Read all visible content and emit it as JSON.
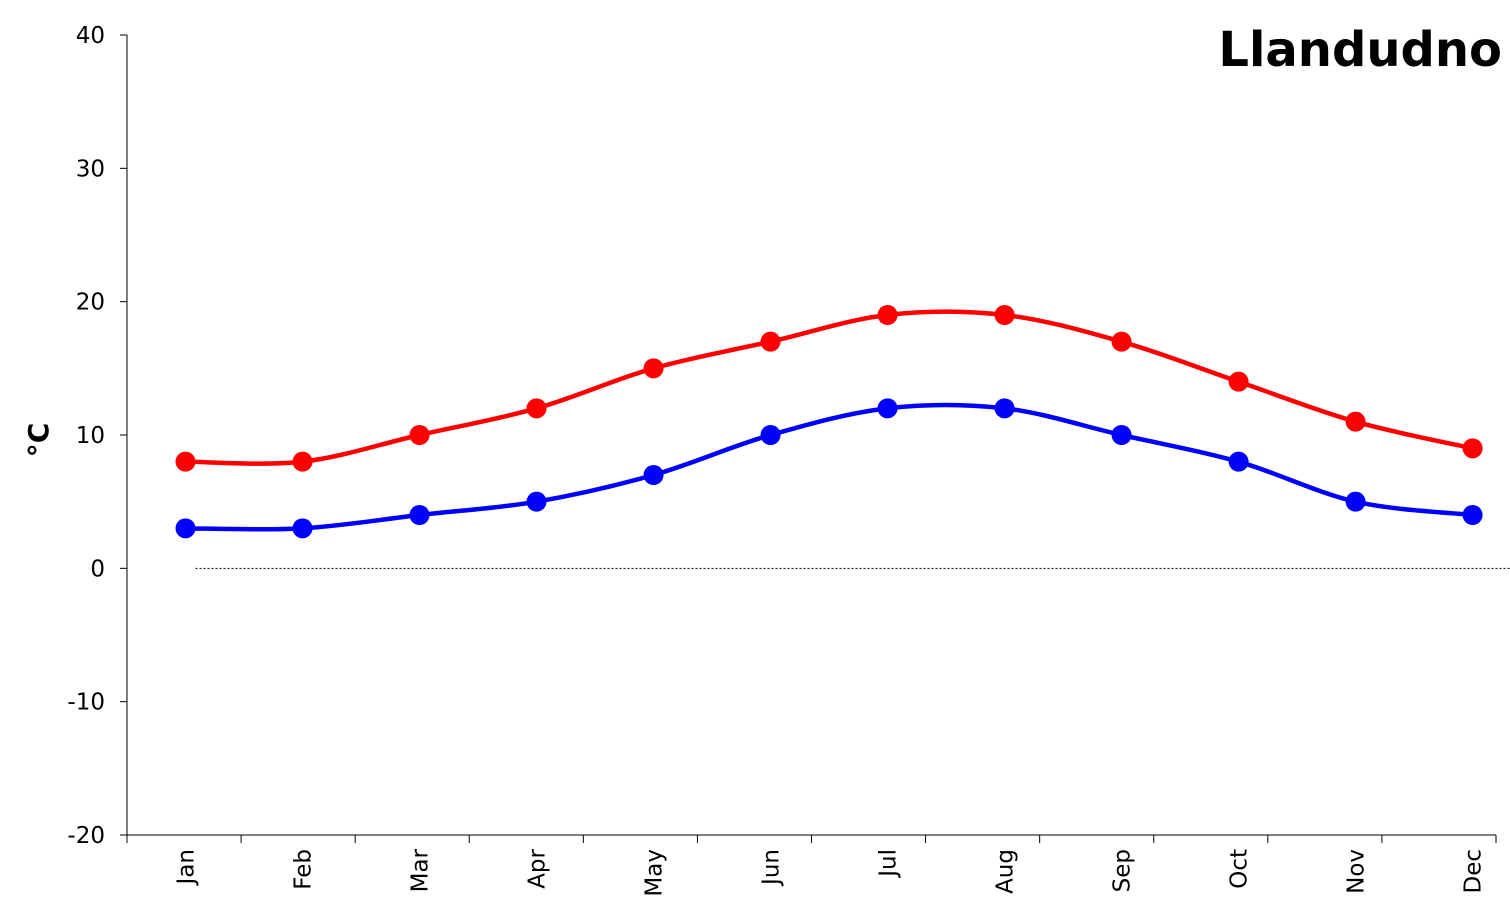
{
  "chart_data": {
    "type": "line",
    "title": "Llandudno",
    "ylabel": "°C",
    "xlabel": "",
    "categories": [
      "Jan",
      "Feb",
      "Mar",
      "Apr",
      "May",
      "Jun",
      "Jul",
      "Aug",
      "Sep",
      "Oct",
      "Nov",
      "Dec"
    ],
    "ylim": [
      -20,
      40
    ],
    "yticks": [
      -20,
      -10,
      0,
      10,
      20,
      30,
      40
    ],
    "grid": false,
    "zero_line": "dotted",
    "series": [
      {
        "color": "#ff0000",
        "values": [
          8,
          8,
          10,
          12,
          15,
          17,
          19,
          19,
          17,
          14,
          11,
          9
        ]
      },
      {
        "color": "#0000ff",
        "values": [
          3,
          3,
          4,
          5,
          7,
          10,
          12,
          12,
          10,
          8,
          5,
          4
        ]
      }
    ]
  }
}
